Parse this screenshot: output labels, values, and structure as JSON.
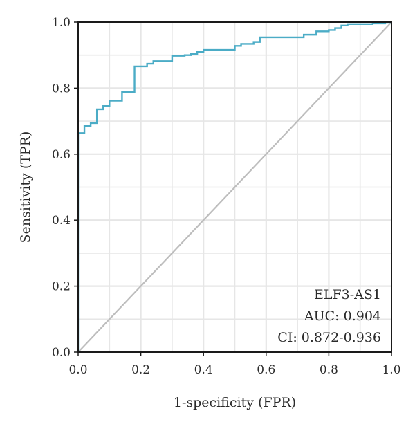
{
  "chart_data": {
    "type": "line",
    "title": "",
    "xlabel": "1-specificity (FPR)",
    "ylabel": "Sensitivity (TPR)",
    "xlim": [
      0,
      1
    ],
    "ylim": [
      0,
      1
    ],
    "x_ticks": [
      0.0,
      0.2,
      0.4,
      0.6,
      0.8,
      1.0
    ],
    "y_ticks": [
      0.0,
      0.2,
      0.4,
      0.6,
      0.8,
      1.0
    ],
    "x_tick_labels": [
      "0.0",
      "0.2",
      "0.4",
      "0.6",
      "0.8",
      "1.0"
    ],
    "y_tick_labels": [
      "0.0",
      "0.2",
      "0.4",
      "0.6",
      "0.8",
      "1.0"
    ],
    "grid": true,
    "annotation": [
      "ELF3-AS1",
      "AUC: 0.904",
      "CI: 0.872-0.936"
    ],
    "colors": {
      "roc": "#4bacc6",
      "diagonal": "#bdbdbd",
      "grid": "#e6e6e6",
      "frame": "#1a1a1a"
    },
    "series": [
      {
        "x": [
          0,
          0,
          0.02,
          0.02,
          0.04,
          0.04,
          0.06,
          0.06,
          0.08,
          0.08,
          0.1,
          0.1,
          0.14,
          0.14,
          0.18,
          0.18,
          0.22,
          0.22,
          0.24,
          0.24,
          0.3,
          0.3,
          0.34,
          0.34,
          0.36,
          0.36,
          0.38,
          0.38,
          0.4,
          0.4,
          0.5,
          0.5,
          0.52,
          0.52,
          0.56,
          0.56,
          0.58,
          0.58,
          0.72,
          0.72,
          0.76,
          0.76,
          0.8,
          0.8,
          0.82,
          0.82,
          0.84,
          0.84,
          0.86,
          0.86,
          0.94,
          0.94,
          0.98,
          0.98,
          1.0
        ],
        "y": [
          0,
          0.664,
          0.664,
          0.686,
          0.686,
          0.694,
          0.694,
          0.736,
          0.736,
          0.746,
          0.746,
          0.762,
          0.762,
          0.788,
          0.788,
          0.866,
          0.866,
          0.874,
          0.874,
          0.882,
          0.882,
          0.898,
          0.898,
          0.9,
          0.9,
          0.904,
          0.904,
          0.91,
          0.91,
          0.916,
          0.916,
          0.928,
          0.928,
          0.934,
          0.934,
          0.94,
          0.94,
          0.954,
          0.954,
          0.962,
          0.962,
          0.972,
          0.972,
          0.976,
          0.976,
          0.982,
          0.982,
          0.99,
          0.99,
          0.994,
          0.994,
          0.996,
          0.996,
          1.0,
          1.0
        ]
      },
      {
        "x": [
          0,
          1
        ],
        "y": [
          0,
          1
        ]
      }
    ]
  }
}
